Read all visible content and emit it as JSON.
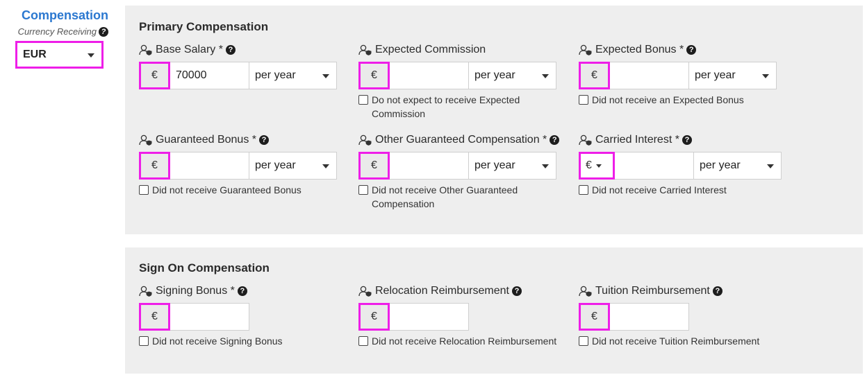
{
  "sidebar": {
    "title": "Compensation",
    "currency_label": "Currency Receiving",
    "currency_value": "EUR"
  },
  "primary": {
    "title": "Primary Compensation",
    "fields": [
      {
        "label": "Base Salary *",
        "symbol": "€",
        "value": "70000",
        "period": "per year",
        "has_help": true,
        "checkbox": ""
      },
      {
        "label": "Expected Commission",
        "symbol": "€",
        "value": "",
        "period": "per year",
        "has_help": false,
        "checkbox": "Do not expect to receive Expected Commission"
      },
      {
        "label": "Expected Bonus *",
        "symbol": "€",
        "value": "",
        "period": "per year",
        "has_help": true,
        "checkbox": "Did not receive an Expected Bonus"
      },
      {
        "label": "Guaranteed Bonus *",
        "symbol": "€",
        "value": "",
        "period": "per year",
        "has_help": true,
        "checkbox": "Did not receive Guaranteed Bonus"
      },
      {
        "label": "Other Guaranteed Compensation *",
        "symbol": "€",
        "value": "",
        "period": "per year",
        "has_help": true,
        "checkbox": "Did not receive Other Guaranteed Compensation"
      },
      {
        "label": "Carried Interest *",
        "symbol": "€",
        "value": "",
        "period": "per year",
        "has_help": true,
        "checkbox": "Did not receive Carried Interest"
      }
    ]
  },
  "sign_on": {
    "title": "Sign On Compensation",
    "fields": [
      {
        "label": "Signing Bonus *",
        "symbol": "€",
        "value": "",
        "has_help": true,
        "checkbox": "Did not receive Signing Bonus"
      },
      {
        "label": "Relocation Reimbursement",
        "symbol": "€",
        "value": "",
        "has_help": true,
        "checkbox": "Did not receive Relocation Reimbursement"
      },
      {
        "label": "Tuition Reimbursement",
        "symbol": "€",
        "value": "",
        "has_help": true,
        "checkbox": "Did not receive Tuition Reimbursement"
      }
    ]
  },
  "icons": {
    "field_icon": "user-shield-icon",
    "help_icon": "question-circle-icon",
    "help_glyph": "?"
  },
  "colors": {
    "accent": "#2b78d0",
    "highlight": "#ee1ee8",
    "panel_bg": "#eeeeee"
  }
}
